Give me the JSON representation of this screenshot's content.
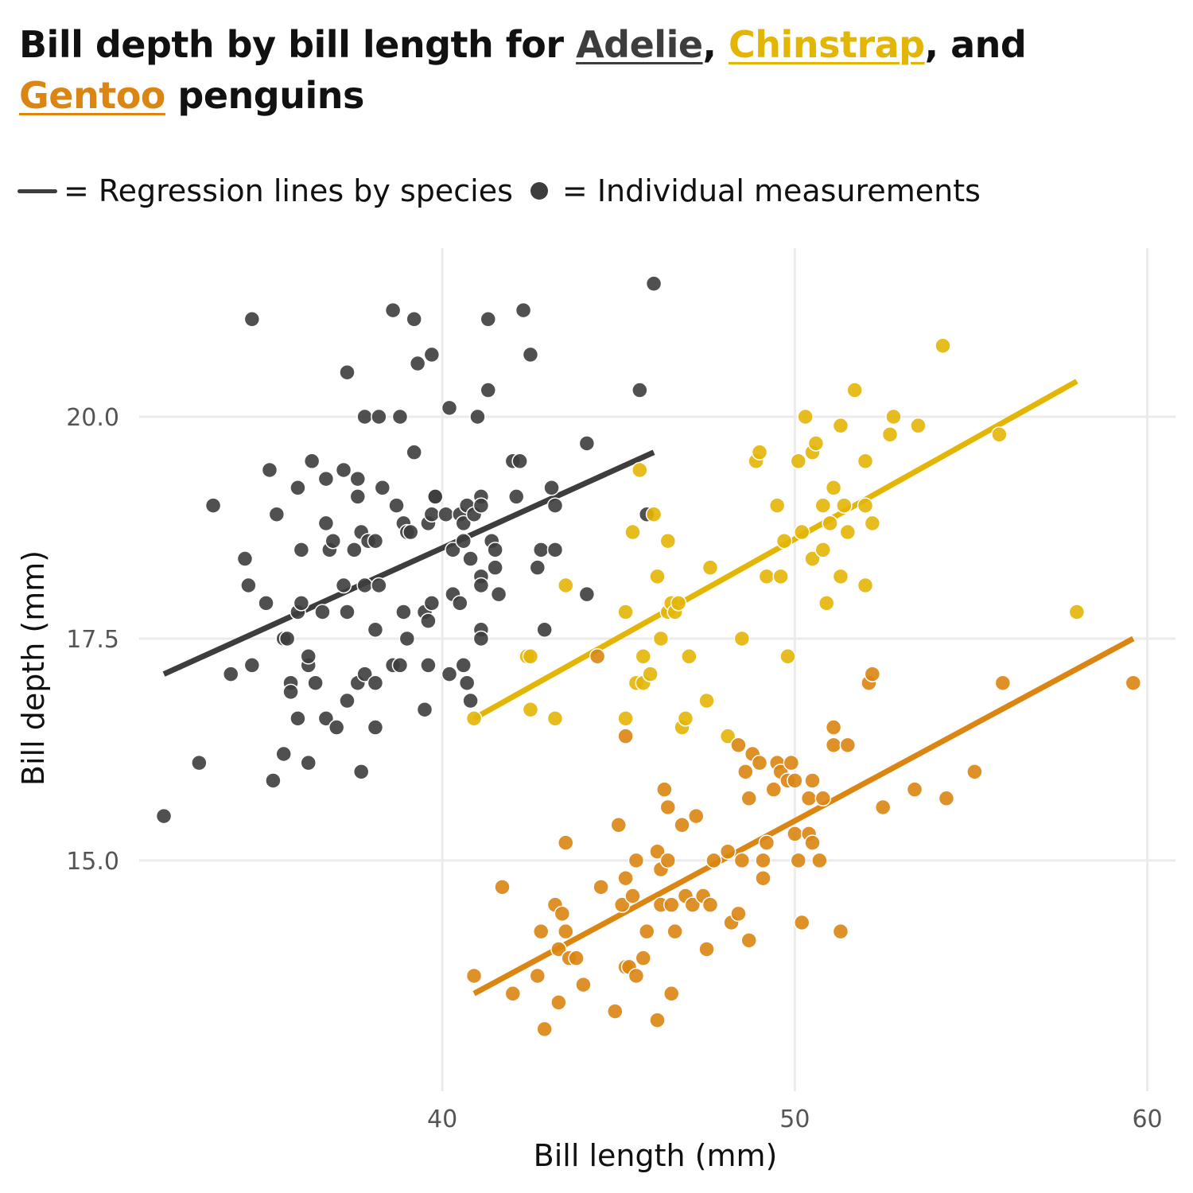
{
  "title": {
    "prefix": "Bill depth by bill length for ",
    "species1": "Adelie",
    "sep1": ", ",
    "species2": "Chinstrap",
    "sep2": ", and ",
    "species3": "Gentoo",
    "suffix": " penguins"
  },
  "key": {
    "line_text": "= Regression lines by species",
    "dot_text": "= Individual measurements"
  },
  "colors": {
    "Adelie": "#3d3d3d",
    "Chinstrap": "#e3b505",
    "Gentoo": "#db8512",
    "grid": "#ebebeb",
    "tick_text": "#555555"
  },
  "chart_data": {
    "type": "scatter",
    "title": "Bill depth by bill length for Adelie, Chinstrap, and Gentoo penguins",
    "xlabel": "Bill length (mm)",
    "ylabel": "Bill depth (mm)",
    "xlim": [
      31.4,
      60.8
    ],
    "ylim": [
      12.4,
      21.9
    ],
    "x_ticks": [
      40,
      50,
      60
    ],
    "x_tick_labels": [
      "40",
      "50",
      "60"
    ],
    "y_ticks": [
      15.0,
      17.5,
      20.0
    ],
    "y_tick_labels": [
      "15.0",
      "17.5",
      "20.0"
    ],
    "grid": true,
    "series": [
      {
        "name": "Adelie",
        "color": "#3d3d3d",
        "regression": {
          "x": [
            32.1,
            46.0
          ],
          "y": [
            17.1,
            19.6
          ]
        },
        "points": [
          [
            32.1,
            15.5
          ],
          [
            33.1,
            16.1
          ],
          [
            33.5,
            19.0
          ],
          [
            34.0,
            17.1
          ],
          [
            34.4,
            18.4
          ],
          [
            34.5,
            18.1
          ],
          [
            34.6,
            17.2
          ],
          [
            34.6,
            21.1
          ],
          [
            35.0,
            17.9
          ],
          [
            35.1,
            19.4
          ],
          [
            35.2,
            15.9
          ],
          [
            35.3,
            18.9
          ],
          [
            35.5,
            16.2
          ],
          [
            35.5,
            17.5
          ],
          [
            35.6,
            17.5
          ],
          [
            35.7,
            17.0
          ],
          [
            35.7,
            16.9
          ],
          [
            35.9,
            16.6
          ],
          [
            35.9,
            17.8
          ],
          [
            35.9,
            19.2
          ],
          [
            36.0,
            18.5
          ],
          [
            36.0,
            17.9
          ],
          [
            36.2,
            16.1
          ],
          [
            36.2,
            17.2
          ],
          [
            36.2,
            17.3
          ],
          [
            36.3,
            19.5
          ],
          [
            36.4,
            17.0
          ],
          [
            36.6,
            17.8
          ],
          [
            36.7,
            16.6
          ],
          [
            36.7,
            18.8
          ],
          [
            36.7,
            19.3
          ],
          [
            36.8,
            18.5
          ],
          [
            36.9,
            18.6
          ],
          [
            37.0,
            16.5
          ],
          [
            37.2,
            18.1
          ],
          [
            37.2,
            19.4
          ],
          [
            37.3,
            17.8
          ],
          [
            37.3,
            16.8
          ],
          [
            37.3,
            20.5
          ],
          [
            37.5,
            18.5
          ],
          [
            37.6,
            17.0
          ],
          [
            37.6,
            19.1
          ],
          [
            37.6,
            19.3
          ],
          [
            37.7,
            18.7
          ],
          [
            37.7,
            16.0
          ],
          [
            37.8,
            18.1
          ],
          [
            37.8,
            17.1
          ],
          [
            37.8,
            20.0
          ],
          [
            37.9,
            18.6
          ],
          [
            38.1,
            18.6
          ],
          [
            38.1,
            17.6
          ],
          [
            38.1,
            16.5
          ],
          [
            38.1,
            17.0
          ],
          [
            38.2,
            18.1
          ],
          [
            38.2,
            20.0
          ],
          [
            38.3,
            19.2
          ],
          [
            38.6,
            17.2
          ],
          [
            38.6,
            21.2
          ],
          [
            38.7,
            19.0
          ],
          [
            38.8,
            17.2
          ],
          [
            38.8,
            20.0
          ],
          [
            38.9,
            17.8
          ],
          [
            38.9,
            18.8
          ],
          [
            39.0,
            18.7
          ],
          [
            39.0,
            17.5
          ],
          [
            39.1,
            18.7
          ],
          [
            39.2,
            19.6
          ],
          [
            39.2,
            21.1
          ],
          [
            39.3,
            20.6
          ],
          [
            39.5,
            17.8
          ],
          [
            39.5,
            16.7
          ],
          [
            39.6,
            17.7
          ],
          [
            39.6,
            18.8
          ],
          [
            39.6,
            17.2
          ],
          [
            39.7,
            17.9
          ],
          [
            39.7,
            18.9
          ],
          [
            39.8,
            19.1
          ],
          [
            39.8,
            19.1
          ],
          [
            39.7,
            20.7
          ],
          [
            40.1,
            18.9
          ],
          [
            40.2,
            20.1
          ],
          [
            40.2,
            17.1
          ],
          [
            40.3,
            18.0
          ],
          [
            40.3,
            18.5
          ],
          [
            40.5,
            17.9
          ],
          [
            40.5,
            18.9
          ],
          [
            40.6,
            18.6
          ],
          [
            40.6,
            18.8
          ],
          [
            40.6,
            17.2
          ],
          [
            40.7,
            17.0
          ],
          [
            40.7,
            19.0
          ],
          [
            40.8,
            18.4
          ],
          [
            40.8,
            16.8
          ],
          [
            40.9,
            18.9
          ],
          [
            41.0,
            20.0
          ],
          [
            41.1,
            19.1
          ],
          [
            41.1,
            18.2
          ],
          [
            41.1,
            17.6
          ],
          [
            41.1,
            19.0
          ],
          [
            41.1,
            17.5
          ],
          [
            41.1,
            18.1
          ],
          [
            41.3,
            20.3
          ],
          [
            41.3,
            21.1
          ],
          [
            41.4,
            18.6
          ],
          [
            41.5,
            18.3
          ],
          [
            41.5,
            18.5
          ],
          [
            41.6,
            18.0
          ],
          [
            42.0,
            19.5
          ],
          [
            42.1,
            19.1
          ],
          [
            42.2,
            19.5
          ],
          [
            42.3,
            21.2
          ],
          [
            42.5,
            20.7
          ],
          [
            42.7,
            18.3
          ],
          [
            42.8,
            18.5
          ],
          [
            42.9,
            17.6
          ],
          [
            43.1,
            19.2
          ],
          [
            43.2,
            19.0
          ],
          [
            43.2,
            18.5
          ],
          [
            44.1,
            19.7
          ],
          [
            44.1,
            18.0
          ],
          [
            45.6,
            20.3
          ],
          [
            45.8,
            18.9
          ],
          [
            46.0,
            21.5
          ]
        ]
      },
      {
        "name": "Chinstrap",
        "color": "#e3b505",
        "regression": {
          "x": [
            40.9,
            58.0
          ],
          "y": [
            16.6,
            20.4
          ]
        },
        "points": [
          [
            40.9,
            16.6
          ],
          [
            42.4,
            17.3
          ],
          [
            42.5,
            17.3
          ],
          [
            42.5,
            16.7
          ],
          [
            43.2,
            16.6
          ],
          [
            43.5,
            18.1
          ],
          [
            45.2,
            17.8
          ],
          [
            45.2,
            16.6
          ],
          [
            45.4,
            18.7
          ],
          [
            45.5,
            17.0
          ],
          [
            45.6,
            19.4
          ],
          [
            45.7,
            17.3
          ],
          [
            45.7,
            17.0
          ],
          [
            45.9,
            17.1
          ],
          [
            46.0,
            18.9
          ],
          [
            46.1,
            18.2
          ],
          [
            46.2,
            17.5
          ],
          [
            46.4,
            18.6
          ],
          [
            46.4,
            17.8
          ],
          [
            46.5,
            17.9
          ],
          [
            46.6,
            17.8
          ],
          [
            46.7,
            17.9
          ],
          [
            46.8,
            16.5
          ],
          [
            46.9,
            16.6
          ],
          [
            47.0,
            17.3
          ],
          [
            47.5,
            16.8
          ],
          [
            47.6,
            18.3
          ],
          [
            48.1,
            16.4
          ],
          [
            48.5,
            17.5
          ],
          [
            48.9,
            19.5
          ],
          [
            49.0,
            19.6
          ],
          [
            49.2,
            18.2
          ],
          [
            49.5,
            19.0
          ],
          [
            49.6,
            18.2
          ],
          [
            49.7,
            18.6
          ],
          [
            49.8,
            17.3
          ],
          [
            50.1,
            19.5
          ],
          [
            50.2,
            18.7
          ],
          [
            50.3,
            20.0
          ],
          [
            50.5,
            18.4
          ],
          [
            50.5,
            19.6
          ],
          [
            50.6,
            19.7
          ],
          [
            50.8,
            18.5
          ],
          [
            50.8,
            19.0
          ],
          [
            50.9,
            17.9
          ],
          [
            51.0,
            18.8
          ],
          [
            51.1,
            19.2
          ],
          [
            51.3,
            19.9
          ],
          [
            51.3,
            18.2
          ],
          [
            51.4,
            19.0
          ],
          [
            51.5,
            18.7
          ],
          [
            51.7,
            20.3
          ],
          [
            52.0,
            19.5
          ],
          [
            52.0,
            18.1
          ],
          [
            52.0,
            19.0
          ],
          [
            52.2,
            18.8
          ],
          [
            52.7,
            19.8
          ],
          [
            52.8,
            20.0
          ],
          [
            53.5,
            19.9
          ],
          [
            54.2,
            20.8
          ],
          [
            55.8,
            19.8
          ],
          [
            58.0,
            17.8
          ]
        ]
      },
      {
        "name": "Gentoo",
        "color": "#db8512",
        "regression": {
          "x": [
            40.9,
            59.6
          ],
          "y": [
            13.5,
            17.5
          ]
        },
        "points": [
          [
            40.9,
            13.7
          ],
          [
            41.7,
            14.7
          ],
          [
            42.0,
            13.5
          ],
          [
            42.7,
            13.7
          ],
          [
            42.8,
            14.2
          ],
          [
            42.9,
            13.1
          ],
          [
            43.2,
            14.5
          ],
          [
            43.3,
            14.0
          ],
          [
            43.3,
            13.4
          ],
          [
            43.4,
            14.4
          ],
          [
            43.5,
            14.2
          ],
          [
            43.5,
            15.2
          ],
          [
            43.6,
            13.9
          ],
          [
            43.8,
            13.9
          ],
          [
            44.0,
            13.6
          ],
          [
            44.4,
            17.3
          ],
          [
            44.5,
            14.7
          ],
          [
            44.9,
            13.3
          ],
          [
            45.0,
            15.4
          ],
          [
            45.1,
            14.5
          ],
          [
            45.2,
            13.8
          ],
          [
            45.2,
            14.8
          ],
          [
            45.2,
            16.4
          ],
          [
            45.3,
            13.8
          ],
          [
            45.4,
            14.6
          ],
          [
            45.5,
            13.7
          ],
          [
            45.5,
            15.0
          ],
          [
            45.7,
            13.9
          ],
          [
            45.8,
            14.2
          ],
          [
            46.1,
            13.2
          ],
          [
            46.1,
            15.1
          ],
          [
            46.2,
            14.5
          ],
          [
            46.2,
            14.9
          ],
          [
            46.3,
            15.8
          ],
          [
            46.4,
            15.6
          ],
          [
            46.4,
            15.0
          ],
          [
            46.5,
            13.5
          ],
          [
            46.5,
            14.5
          ],
          [
            46.6,
            14.2
          ],
          [
            46.8,
            15.4
          ],
          [
            46.9,
            14.6
          ],
          [
            47.1,
            14.5
          ],
          [
            47.2,
            15.5
          ],
          [
            47.4,
            14.6
          ],
          [
            47.5,
            14.0
          ],
          [
            47.6,
            14.5
          ],
          [
            47.7,
            15.0
          ],
          [
            48.1,
            15.1
          ],
          [
            48.2,
            14.3
          ],
          [
            48.4,
            14.4
          ],
          [
            48.4,
            16.3
          ],
          [
            48.5,
            15.0
          ],
          [
            48.6,
            16.0
          ],
          [
            48.7,
            14.1
          ],
          [
            48.7,
            15.7
          ],
          [
            48.8,
            16.2
          ],
          [
            49.0,
            16.1
          ],
          [
            49.1,
            14.8
          ],
          [
            49.1,
            15.0
          ],
          [
            49.2,
            15.2
          ],
          [
            49.4,
            15.8
          ],
          [
            49.5,
            16.1
          ],
          [
            49.6,
            16.0
          ],
          [
            49.8,
            15.9
          ],
          [
            49.9,
            16.1
          ],
          [
            50.0,
            15.3
          ],
          [
            50.0,
            15.9
          ],
          [
            50.1,
            15.0
          ],
          [
            50.2,
            14.3
          ],
          [
            50.4,
            15.7
          ],
          [
            50.4,
            15.3
          ],
          [
            50.5,
            15.2
          ],
          [
            50.5,
            15.9
          ],
          [
            50.7,
            15.0
          ],
          [
            50.8,
            15.7
          ],
          [
            51.1,
            16.5
          ],
          [
            51.1,
            16.3
          ],
          [
            51.3,
            14.2
          ],
          [
            51.5,
            16.3
          ],
          [
            52.1,
            17.0
          ],
          [
            52.2,
            17.1
          ],
          [
            52.5,
            15.6
          ],
          [
            53.4,
            15.8
          ],
          [
            54.3,
            15.7
          ],
          [
            55.1,
            16.0
          ],
          [
            55.9,
            17.0
          ],
          [
            59.6,
            17.0
          ]
        ]
      }
    ]
  }
}
